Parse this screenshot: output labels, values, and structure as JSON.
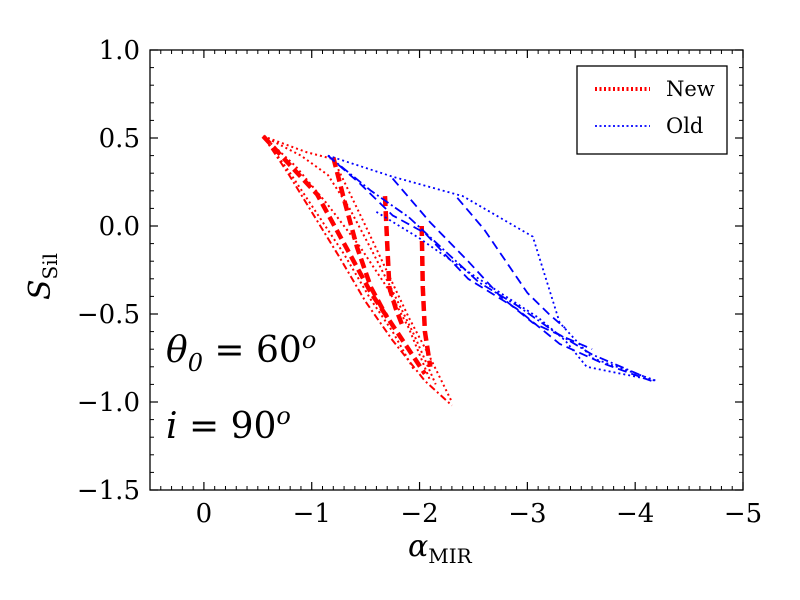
{
  "chart_data": {
    "type": "line",
    "xlabel": "α",
    "xlabel_sub": "MIR",
    "ylabel": "S",
    "ylabel_sub": "Sil",
    "xlim": [
      0.5,
      -5
    ],
    "ylim": [
      -1.5,
      1.0
    ],
    "x_inverted": true,
    "xticks": [
      0,
      -1,
      -2,
      -3,
      -4,
      -5
    ],
    "xtick_labels": [
      "0",
      "−1",
      "−2",
      "−3",
      "−4",
      "−5"
    ],
    "yticks": [
      1.0,
      0.5,
      0.0,
      -0.5,
      -1.0,
      -1.5
    ],
    "ytick_labels": [
      "1.0",
      "0.5",
      "0.0",
      "−0.5",
      "−1.0",
      "−1.5"
    ],
    "grid": false,
    "legend": {
      "placement": "top-right",
      "entries": [
        {
          "label": "New",
          "color": "#ff0000",
          "style": "dotted"
        },
        {
          "label": "Old",
          "color": "#0000ff",
          "style": "dotted"
        }
      ]
    },
    "annotations": [
      {
        "name": "theta",
        "text": "θ",
        "sub": "0",
        "eq": " = 60",
        "sup": "o"
      },
      {
        "name": "inclination",
        "text": "i",
        "eq": " = 90",
        "sup": "o"
      }
    ],
    "series": [
      {
        "group": "New",
        "color": "#ff0000",
        "dash": "2,3",
        "width": 2,
        "points": [
          [
            -0.55,
            0.51
          ],
          [
            -0.85,
            0.34
          ],
          [
            -1.15,
            0.12
          ],
          [
            -1.45,
            -0.12
          ],
          [
            -1.7,
            -0.35
          ],
          [
            -1.9,
            -0.58
          ],
          [
            -2.1,
            -0.88
          ]
        ]
      },
      {
        "group": "New",
        "color": "#ff0000",
        "dash": "2,3",
        "width": 2,
        "points": [
          [
            -0.55,
            0.51
          ],
          [
            -0.9,
            0.4
          ],
          [
            -1.15,
            0.29
          ],
          [
            -1.35,
            0.1
          ],
          [
            -1.55,
            -0.13
          ],
          [
            -1.75,
            -0.37
          ],
          [
            -1.95,
            -0.62
          ],
          [
            -2.15,
            -0.9
          ]
        ]
      },
      {
        "group": "New",
        "color": "#ff0000",
        "dash": "2,3",
        "width": 2,
        "points": [
          [
            -0.55,
            0.51
          ],
          [
            -0.95,
            0.42
          ],
          [
            -1.2,
            0.38
          ],
          [
            -1.35,
            0.19
          ],
          [
            -1.5,
            0.0
          ],
          [
            -1.7,
            -0.26
          ],
          [
            -1.9,
            -0.52
          ],
          [
            -2.1,
            -0.75
          ],
          [
            -2.3,
            -1.0
          ]
        ]
      },
      {
        "group": "New",
        "color": "#ff0000",
        "dash": "2,3",
        "width": 2,
        "points": [
          [
            -0.55,
            0.51
          ],
          [
            -0.8,
            0.3
          ],
          [
            -1.05,
            0.07
          ],
          [
            -1.3,
            -0.16
          ],
          [
            -1.55,
            -0.42
          ],
          [
            -1.75,
            -0.6
          ],
          [
            -1.95,
            -0.82
          ]
        ]
      },
      {
        "group": "New",
        "color": "#ff0000",
        "dash": "7,3,2,3",
        "width": 2,
        "points": [
          [
            -0.55,
            0.51
          ],
          [
            -0.78,
            0.3
          ],
          [
            -1.0,
            0.08
          ],
          [
            -1.25,
            -0.17
          ],
          [
            -1.5,
            -0.43
          ],
          [
            -1.75,
            -0.65
          ],
          [
            -2.05,
            -0.88
          ],
          [
            -2.3,
            -1.02
          ]
        ]
      },
      {
        "group": "New",
        "color": "#ff0000",
        "dash": "10,5",
        "width": 4.5,
        "points": [
          [
            -0.55,
            0.51
          ],
          [
            -1.05,
            0.18
          ],
          [
            -1.3,
            -0.1
          ],
          [
            -1.55,
            -0.38
          ],
          [
            -1.8,
            -0.61
          ],
          [
            -2.05,
            -0.84
          ]
        ]
      },
      {
        "group": "New",
        "color": "#ff0000",
        "dash": "10,5",
        "width": 4.5,
        "points": [
          [
            -1.2,
            0.39
          ],
          [
            -1.3,
            0.15
          ],
          [
            -1.42,
            -0.12
          ],
          [
            -1.55,
            -0.35
          ],
          [
            -1.7,
            -0.52
          ]
        ]
      },
      {
        "group": "New",
        "color": "#ff0000",
        "dash": "10,5",
        "width": 4.5,
        "points": [
          [
            -1.68,
            0.17
          ],
          [
            -1.7,
            -0.1
          ],
          [
            -1.72,
            -0.35
          ],
          [
            -1.78,
            -0.47
          ],
          [
            -1.85,
            -0.58
          ]
        ]
      },
      {
        "group": "New",
        "color": "#ff0000",
        "dash": "10,5",
        "width": 4.5,
        "points": [
          [
            -2.02,
            0.0
          ],
          [
            -2.03,
            -0.35
          ],
          [
            -2.05,
            -0.6
          ],
          [
            -2.1,
            -0.8
          ]
        ]
      },
      {
        "group": "Old",
        "color": "#0000ff",
        "dash": "2,3",
        "width": 1.8,
        "points": [
          [
            -1.15,
            0.4
          ],
          [
            -1.75,
            0.28
          ],
          [
            -2.4,
            0.17
          ],
          [
            -3.05,
            -0.06
          ],
          [
            -3.3,
            -0.55
          ],
          [
            -3.6,
            -0.75
          ],
          [
            -4.2,
            -0.88
          ]
        ]
      },
      {
        "group": "Old",
        "color": "#0000ff",
        "dash": "2,3",
        "width": 1.8,
        "points": [
          [
            -1.6,
            0.08
          ],
          [
            -2.0,
            -0.07
          ],
          [
            -2.35,
            -0.22
          ],
          [
            -2.75,
            -0.38
          ],
          [
            -3.1,
            -0.52
          ],
          [
            -3.35,
            -0.65
          ],
          [
            -3.55,
            -0.8
          ],
          [
            -4.2,
            -0.88
          ]
        ]
      },
      {
        "group": "Old",
        "color": "#0000ff",
        "dash": "9,5",
        "width": 1.8,
        "points": [
          [
            -1.15,
            0.4
          ],
          [
            -1.45,
            0.24
          ],
          [
            -1.75,
            0.06
          ],
          [
            -2.05,
            -0.04
          ],
          [
            -2.45,
            -0.3
          ],
          [
            -2.9,
            -0.47
          ],
          [
            -3.3,
            -0.67
          ],
          [
            -3.7,
            -0.78
          ],
          [
            -4.15,
            -0.88
          ]
        ]
      },
      {
        "group": "Old",
        "color": "#0000ff",
        "dash": "9,5",
        "width": 1.8,
        "points": [
          [
            -1.75,
            0.27
          ],
          [
            -2.1,
            0.02
          ],
          [
            -2.45,
            -0.2
          ],
          [
            -2.75,
            -0.4
          ],
          [
            -3.05,
            -0.55
          ],
          [
            -3.3,
            -0.62
          ],
          [
            -3.6,
            -0.7
          ]
        ]
      },
      {
        "group": "Old",
        "color": "#0000ff",
        "dash": "9,5",
        "width": 1.8,
        "points": [
          [
            -2.35,
            0.16
          ],
          [
            -2.6,
            -0.02
          ],
          [
            -2.8,
            -0.2
          ],
          [
            -3.0,
            -0.38
          ],
          [
            -3.2,
            -0.5
          ],
          [
            -3.35,
            -0.58
          ]
        ]
      },
      {
        "group": "Old",
        "color": "#0000ff",
        "dash": "9,3,2,3",
        "width": 1.8,
        "points": [
          [
            -1.15,
            0.4
          ],
          [
            -1.55,
            0.2
          ],
          [
            -1.9,
            0.05
          ],
          [
            -2.25,
            -0.15
          ],
          [
            -2.55,
            -0.32
          ],
          [
            -2.9,
            -0.45
          ],
          [
            -3.25,
            -0.6
          ],
          [
            -3.6,
            -0.73
          ],
          [
            -4.1,
            -0.86
          ]
        ]
      }
    ]
  }
}
